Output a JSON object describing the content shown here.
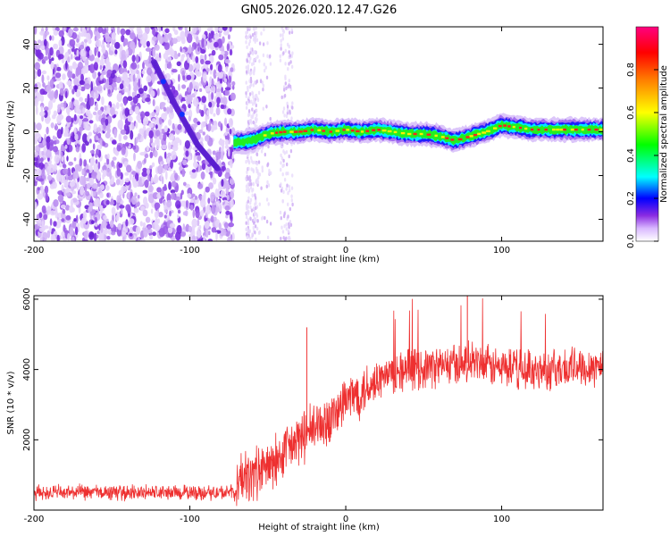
{
  "chart_data": [
    {
      "type": "heatmap",
      "title": "GN05.2026.020.12.47.G26",
      "xlabel": "Height of straight line (km)",
      "ylabel": "Frequency (Hz)",
      "xlim": [
        -200,
        165
      ],
      "ylim": [
        -50,
        48
      ],
      "xticks": [
        -200,
        -100,
        0,
        100
      ],
      "yticks": [
        -40,
        -20,
        0,
        20,
        40
      ],
      "xtick_labels": [
        "-200",
        "-100",
        "0",
        "100"
      ],
      "ytick_labels": [
        "-40",
        "-20",
        "0",
        "20",
        "40"
      ],
      "colorbar": {
        "label": "Normalized spectral amplitude",
        "range": [
          0,
          1
        ],
        "ticks": [
          0,
          0.2,
          0.4,
          0.6,
          0.8
        ],
        "tick_labels": [
          "0.0",
          "0.2",
          "0.4",
          "0.6",
          "0.8"
        ],
        "colors": [
          "#ffffff",
          "#8a2be2",
          "#0000ff",
          "#00ffff",
          "#00ff00",
          "#ffff00",
          "#ff8000",
          "#ff0000",
          "#ff0080"
        ]
      },
      "tone_track": [
        {
          "x": -72,
          "y": -5
        },
        {
          "x": -60,
          "y": -4
        },
        {
          "x": -50,
          "y": -1
        },
        {
          "x": -40,
          "y": 0
        },
        {
          "x": -30,
          "y": 0
        },
        {
          "x": -20,
          "y": 1
        },
        {
          "x": -10,
          "y": 0
        },
        {
          "x": 0,
          "y": 1
        },
        {
          "x": 10,
          "y": 0
        },
        {
          "x": 20,
          "y": 1
        },
        {
          "x": 30,
          "y": 0
        },
        {
          "x": 40,
          "y": -1
        },
        {
          "x": 50,
          "y": -1
        },
        {
          "x": 60,
          "y": -2
        },
        {
          "x": 70,
          "y": -4
        },
        {
          "x": 80,
          "y": -2
        },
        {
          "x": 90,
          "y": 0
        },
        {
          "x": 100,
          "y": 3
        },
        {
          "x": 110,
          "y": 2
        },
        {
          "x": 120,
          "y": 1
        },
        {
          "x": 130,
          "y": 1
        },
        {
          "x": 140,
          "y": 1
        },
        {
          "x": 150,
          "y": 1
        },
        {
          "x": 165,
          "y": 1
        }
      ],
      "diagonal_track": [
        {
          "x": -123,
          "y": 32
        },
        {
          "x": -110,
          "y": 13
        },
        {
          "x": -95,
          "y": -6
        },
        {
          "x": -82,
          "y": -17
        }
      ]
    },
    {
      "type": "line",
      "xlabel": "Height of straight line (km)",
      "ylabel": "SNR (10 * v/v)",
      "xlim": [
        -200,
        165
      ],
      "ylim": [
        0,
        6100
      ],
      "xticks": [
        -200,
        -100,
        0,
        100
      ],
      "yticks": [
        2000,
        4000,
        6000
      ],
      "xtick_labels": [
        "-200",
        "-100",
        "0",
        "100"
      ],
      "ytick_labels": [
        "2000",
        "4000",
        "6000"
      ],
      "series": [
        {
          "name": "SNR",
          "color": "#ee3030",
          "x": [
            -200,
            -150,
            -100,
            -70,
            -68,
            -60,
            -50,
            -40,
            -30,
            -20,
            -10,
            0,
            10,
            20,
            30,
            40,
            50,
            60,
            70,
            80,
            90,
            100,
            110,
            120,
            130,
            140,
            150,
            165
          ],
          "values": [
            500,
            500,
            500,
            500,
            900,
            1000,
            1200,
            1600,
            2000,
            2300,
            2600,
            3100,
            3400,
            3700,
            3900,
            4000,
            4050,
            4100,
            4150,
            4200,
            4100,
            4050,
            4000,
            4000,
            4000,
            4000,
            4100,
            4100
          ],
          "spikes": [
            {
              "x": -25,
              "y": 5200
            },
            {
              "x": 78,
              "y": 6100
            }
          ]
        }
      ]
    }
  ]
}
